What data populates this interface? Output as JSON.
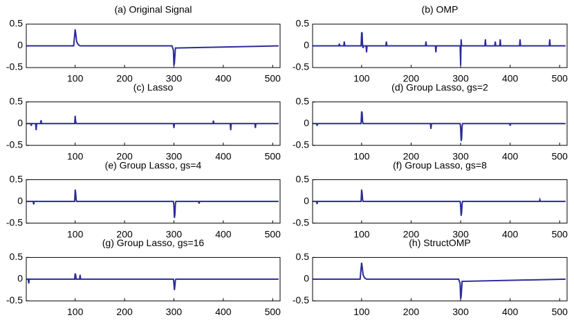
{
  "chart_data": [
    {
      "type": "line",
      "title": "(a) Original Signal",
      "color": "#2b2b9a",
      "xlim": [
        1,
        515
      ],
      "ylim": [
        -0.5,
        0.5
      ],
      "xticks": [
        100,
        200,
        300,
        400,
        500
      ],
      "yticks": [
        -0.5,
        0,
        0.5
      ],
      "x": [
        1,
        97,
        100,
        101,
        103,
        106,
        110,
        296,
        299,
        300,
        301,
        303,
        512
      ],
      "values": [
        0,
        0,
        0.38,
        0.3,
        0.1,
        0.03,
        0,
        0,
        -0.1,
        -0.45,
        -0.4,
        -0.05,
        0
      ]
    },
    {
      "type": "line",
      "title": "(b) OMP",
      "color": "#2b2b9a",
      "xlim": [
        1,
        515
      ],
      "ylim": [
        -0.5,
        0.5
      ],
      "xticks": [
        100,
        200,
        300,
        400,
        500
      ],
      "yticks": [
        -0.5,
        0,
        0.5
      ],
      "x": [
        1,
        54,
        55,
        56,
        64,
        65,
        66,
        99,
        100,
        101,
        102,
        103,
        104,
        109,
        110,
        111,
        149,
        150,
        151,
        229,
        230,
        231,
        249,
        250,
        251,
        299,
        300,
        301,
        302,
        303,
        349,
        350,
        351,
        369,
        370,
        371,
        379,
        380,
        381,
        419,
        420,
        421,
        479,
        480,
        481,
        512
      ],
      "values": [
        0,
        0,
        0.05,
        0,
        0,
        0.1,
        0,
        0,
        0.3,
        0.3,
        0,
        -0.05,
        0,
        0,
        -0.15,
        0,
        0,
        0.1,
        0,
        0,
        0.1,
        0,
        0,
        -0.15,
        0,
        0,
        -0.45,
        0.15,
        0,
        0,
        0,
        0.15,
        0,
        0,
        0.1,
        0,
        0,
        0.15,
        0,
        0,
        0.15,
        0,
        0,
        0.15,
        0,
        0
      ]
    },
    {
      "type": "line",
      "title": "(c) Lasso",
      "color": "#2b2b9a",
      "xlim": [
        1,
        515
      ],
      "ylim": [
        -0.5,
        0.5
      ],
      "xticks": [
        100,
        200,
        300,
        400,
        500
      ],
      "yticks": [
        -0.5,
        0,
        0.5
      ],
      "x": [
        1,
        10,
        11,
        12,
        20,
        21,
        22,
        30,
        31,
        32,
        99,
        100,
        101,
        102,
        299,
        300,
        301,
        302,
        379,
        380,
        381,
        414,
        415,
        416,
        464,
        465,
        466,
        512
      ],
      "values": [
        0,
        0,
        -0.05,
        0,
        0,
        -0.15,
        0,
        0,
        0.08,
        0,
        0,
        0.18,
        0.05,
        0,
        0,
        -0.1,
        0,
        0,
        0,
        0.07,
        0,
        0,
        -0.15,
        0,
        0,
        -0.1,
        0,
        0
      ]
    },
    {
      "type": "line",
      "title": "(d) Group Lasso, gs=2",
      "color": "#2b2b9a",
      "xlim": [
        1,
        515
      ],
      "ylim": [
        -0.5,
        0.5
      ],
      "xticks": [
        100,
        200,
        300,
        400,
        500
      ],
      "yticks": [
        -0.5,
        0,
        0.5
      ],
      "x": [
        1,
        9,
        10,
        11,
        99,
        100,
        101,
        102,
        103,
        239,
        240,
        241,
        299,
        300,
        301,
        302,
        303,
        304,
        399,
        400,
        401,
        512
      ],
      "values": [
        0,
        0,
        -0.05,
        0,
        0,
        0.28,
        0.25,
        0.05,
        0,
        0,
        -0.12,
        0,
        0,
        -0.1,
        -0.4,
        -0.35,
        -0.05,
        0,
        0,
        -0.05,
        0,
        0
      ]
    },
    {
      "type": "line",
      "title": "(e) Group Lasso, gs=4",
      "color": "#2b2b9a",
      "xlim": [
        1,
        515
      ],
      "ylim": [
        -0.5,
        0.5
      ],
      "xticks": [
        100,
        200,
        300,
        400,
        500
      ],
      "yticks": [
        -0.5,
        0,
        0.5
      ],
      "x": [
        1,
        15,
        16,
        17,
        99,
        100,
        101,
        102,
        103,
        299,
        300,
        301,
        302,
        303,
        304,
        350,
        351,
        352,
        512
      ],
      "values": [
        0,
        0,
        -0.07,
        0,
        0,
        0.27,
        0.2,
        0.05,
        0,
        0,
        -0.1,
        -0.38,
        -0.3,
        -0.05,
        0,
        0,
        -0.05,
        0,
        0
      ]
    },
    {
      "type": "line",
      "title": "(f) Group Lasso, gs=8",
      "color": "#2b2b9a",
      "xlim": [
        1,
        515
      ],
      "ylim": [
        -0.5,
        0.5
      ],
      "xticks": [
        100,
        200,
        300,
        400,
        500
      ],
      "yticks": [
        -0.5,
        0,
        0.5
      ],
      "x": [
        1,
        9,
        10,
        11,
        99,
        100,
        101,
        102,
        103,
        299,
        300,
        301,
        302,
        303,
        304,
        459,
        460,
        461,
        512
      ],
      "values": [
        0,
        0,
        -0.06,
        0,
        0,
        0.27,
        0.2,
        0.05,
        0,
        0,
        -0.1,
        -0.33,
        -0.25,
        -0.05,
        0,
        0,
        0.04,
        0,
        0
      ]
    },
    {
      "type": "line",
      "title": "(g) Group Lasso, gs=16",
      "color": "#2b2b9a",
      "xlim": [
        1,
        515
      ],
      "ylim": [
        -0.5,
        0.5
      ],
      "xticks": [
        100,
        200,
        300,
        400,
        500
      ],
      "yticks": [
        -0.5,
        0,
        0.5
      ],
      "x": [
        1,
        5,
        6,
        7,
        99,
        100,
        101,
        102,
        103,
        109,
        110,
        111,
        299,
        300,
        301,
        302,
        303,
        304,
        512
      ],
      "values": [
        0,
        0,
        -0.1,
        0,
        0,
        0.13,
        0.1,
        0,
        0,
        0,
        0.1,
        0,
        0,
        -0.1,
        -0.25,
        -0.15,
        -0.02,
        0,
        0
      ]
    },
    {
      "type": "line",
      "title": "(h) StructOMP",
      "color": "#2b2b9a",
      "xlim": [
        1,
        515
      ],
      "ylim": [
        -0.5,
        0.5
      ],
      "xticks": [
        100,
        200,
        300,
        400,
        500
      ],
      "yticks": [
        -0.5,
        0,
        0.5
      ],
      "x": [
        1,
        97,
        100,
        101,
        103,
        106,
        110,
        296,
        299,
        300,
        301,
        303,
        512
      ],
      "values": [
        0,
        0,
        0.38,
        0.3,
        0.1,
        0.03,
        0,
        0,
        -0.1,
        -0.45,
        -0.4,
        -0.05,
        0
      ]
    }
  ]
}
